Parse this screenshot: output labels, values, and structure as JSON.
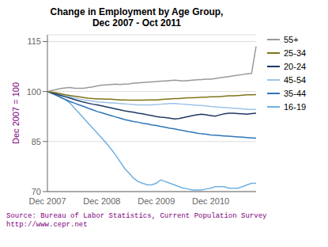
{
  "chart_data": {
    "type": "line",
    "title": "Change in Employment by Age Group,\nDec 2007 - Oct 2011",
    "y_label": "Dec 2007 = 100",
    "annotations": [
      "Source: Bureau of Labor Statistics, Current Population Survey",
      "http://www.cepr.net"
    ],
    "categories": [
      "Dec 2007",
      null,
      null,
      null,
      null,
      null,
      null,
      null,
      null,
      null,
      null,
      null,
      "Dec 2008",
      null,
      null,
      null,
      null,
      null,
      null,
      null,
      null,
      null,
      null,
      null,
      "Dec 2009",
      null,
      null,
      null,
      null,
      null,
      null,
      null,
      null,
      null,
      null,
      null,
      "Dec 2010",
      null,
      null,
      null,
      null,
      null,
      null,
      null,
      null,
      null,
      null
    ],
    "ylim": [
      70,
      117
    ],
    "yticks": [
      70,
      85,
      100,
      115
    ],
    "grid": true,
    "legend": "right",
    "series": [
      {
        "name": "55+",
        "color": "#999999",
        "values": [
          100.0,
          100.3,
          100.6,
          100.9,
          101.1,
          101.2,
          101.0,
          101.0,
          101.0,
          101.2,
          101.4,
          101.7,
          101.9,
          102.0,
          102.1,
          102.2,
          102.1,
          102.2,
          102.3,
          102.5,
          102.6,
          102.7,
          102.8,
          102.9,
          103.0,
          103.1,
          103.2,
          103.3,
          103.4,
          103.3,
          103.2,
          103.3,
          103.4,
          103.5,
          103.6,
          103.7,
          103.7,
          103.9,
          104.1,
          104.3,
          104.5,
          104.7,
          104.9,
          105.1,
          105.3,
          105.4,
          113.5
        ]
      },
      {
        "name": "25-34",
        "color": "#7f7519",
        "values": [
          100.0,
          99.8,
          99.6,
          99.3,
          99.0,
          98.8,
          98.6,
          98.4,
          98.2,
          98.0,
          97.9,
          97.8,
          97.8,
          97.7,
          97.7,
          97.6,
          97.5,
          97.5,
          97.4,
          97.4,
          97.4,
          97.4,
          97.5,
          97.5,
          97.5,
          97.6,
          97.7,
          97.8,
          97.9,
          97.9,
          98.0,
          98.1,
          98.1,
          98.2,
          98.3,
          98.3,
          98.4,
          98.4,
          98.5,
          98.6,
          98.7,
          98.7,
          98.8,
          98.9,
          99.0,
          99.0,
          99.1
        ]
      },
      {
        "name": "20-24",
        "color": "#1F3864",
        "values": [
          100.0,
          99.6,
          99.2,
          98.8,
          98.4,
          98.0,
          97.6,
          97.2,
          96.8,
          96.5,
          96.2,
          96.0,
          95.7,
          95.4,
          95.1,
          94.8,
          94.5,
          94.2,
          94.0,
          93.8,
          93.5,
          93.3,
          93.0,
          92.8,
          92.5,
          92.3,
          92.2,
          92.0,
          91.8,
          91.9,
          92.2,
          92.5,
          92.8,
          93.0,
          93.2,
          93.0,
          92.8,
          92.6,
          93.0,
          93.3,
          93.5,
          93.5,
          93.4,
          93.3,
          93.2,
          93.4,
          93.5
        ]
      },
      {
        "name": "45-54",
        "color": "#9DC3E6",
        "values": [
          100.0,
          99.7,
          99.3,
          99.0,
          98.7,
          98.4,
          98.1,
          97.8,
          97.5,
          97.3,
          97.1,
          96.9,
          96.8,
          96.7,
          96.6,
          96.5,
          96.4,
          96.3,
          96.2,
          96.1,
          96.0,
          96.0,
          96.0,
          96.0,
          96.1,
          96.2,
          96.3,
          96.4,
          96.4,
          96.3,
          96.2,
          96.1,
          96.0,
          95.9,
          95.8,
          95.7,
          95.5,
          95.4,
          95.3,
          95.2,
          95.1,
          95.0,
          94.9,
          94.8,
          94.7,
          94.6,
          94.6
        ]
      },
      {
        "name": "35-44",
        "color": "#2E75B6",
        "values": [
          100.0,
          99.4,
          98.8,
          98.2,
          97.6,
          97.0,
          96.5,
          96.0,
          95.5,
          95.0,
          94.5,
          94.0,
          93.6,
          93.2,
          92.8,
          92.4,
          92.0,
          91.6,
          91.3,
          91.0,
          90.8,
          90.5,
          90.3,
          90.0,
          89.8,
          89.5,
          89.3,
          89.0,
          88.8,
          88.5,
          88.3,
          88.0,
          87.8,
          87.5,
          87.3,
          87.2,
          87.0,
          86.9,
          86.8,
          86.7,
          86.6,
          86.5,
          86.4,
          86.3,
          86.2,
          86.1,
          86.0
        ]
      },
      {
        "name": "16-19",
        "color": "#70B0E0",
        "values": [
          100.0,
          99.5,
          99.0,
          98.2,
          97.5,
          96.5,
          95.0,
          93.5,
          92.0,
          90.5,
          89.0,
          87.5,
          86.0,
          84.5,
          82.8,
          81.0,
          79.0,
          77.0,
          75.5,
          74.0,
          73.0,
          72.5,
          72.0,
          72.0,
          72.5,
          73.5,
          73.0,
          72.5,
          72.0,
          71.5,
          71.0,
          70.8,
          70.5,
          70.5,
          70.5,
          70.8,
          71.0,
          71.5,
          71.5,
          71.5,
          71.0,
          71.0,
          71.0,
          71.5,
          72.0,
          72.5,
          72.5
        ]
      }
    ]
  }
}
